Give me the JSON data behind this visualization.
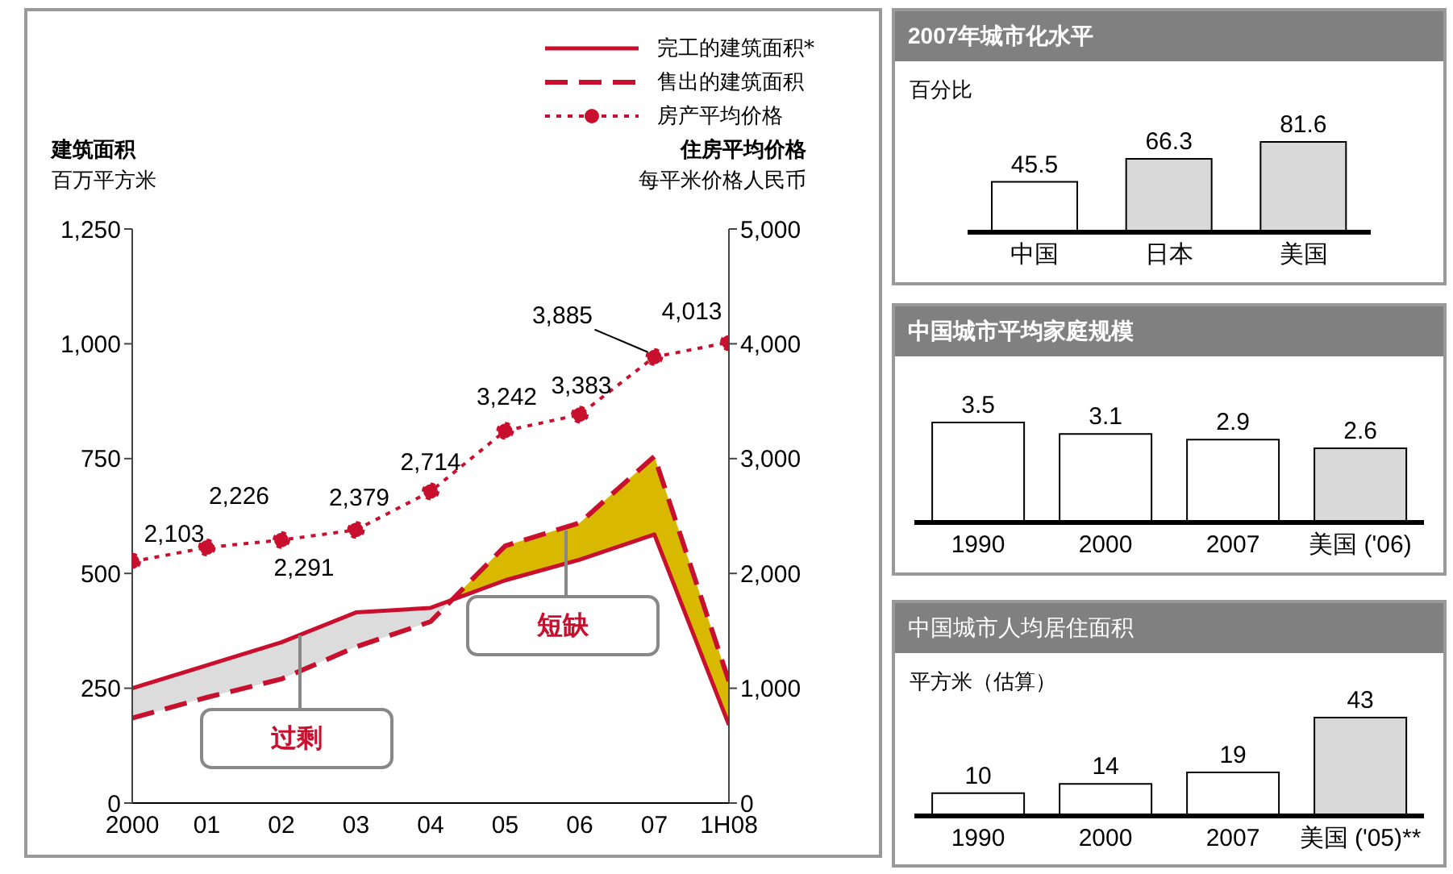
{
  "chart_data": [
    {
      "type": "line",
      "categories": [
        "2000",
        "01",
        "02",
        "03",
        "04",
        "05",
        "06",
        "07",
        "1H08"
      ],
      "ylabel": "建筑面积",
      "y2label": "住房平均价格",
      "ylim": [
        0,
        1250
      ],
      "yticks": [
        {
          "value": 0,
          "label": "0"
        },
        {
          "value": 250,
          "label": "250"
        },
        {
          "value": 500,
          "label": "500"
        },
        {
          "value": 750,
          "label": "750"
        },
        {
          "value": 1000,
          "label": "1,000"
        },
        {
          "value": 1250,
          "label": "1,250"
        }
      ],
      "y2lim": [
        0,
        5000
      ],
      "y2ticks": [
        {
          "value": 0,
          "label": "0"
        },
        {
          "value": 1000,
          "label": "1,000"
        },
        {
          "value": 2000,
          "label": "2,000"
        },
        {
          "value": 3000,
          "label": "3,000"
        },
        {
          "value": 4000,
          "label": "4,000"
        },
        {
          "value": 5000,
          "label": "5,000"
        }
      ],
      "series": [
        {
          "name": "完工的建筑面积*",
          "color": "#c8102e",
          "line_style": "solid",
          "marker": "none",
          "values": [
            250,
            300,
            350,
            415,
            425,
            485,
            530,
            585,
            170
          ]
        },
        {
          "name": "售出的建筑面积",
          "color": "#c8102e",
          "line_style": "dashed",
          "marker": "none",
          "values": [
            185,
            230,
            270,
            340,
            395,
            560,
            610,
            755,
            265
          ]
        },
        {
          "name": "房产平均价格",
          "color": "#c8102e",
          "line_style": "dotted",
          "marker": "circle",
          "axis": "y2",
          "values": [
            2103,
            2226,
            2291,
            2379,
            2714,
            3242,
            3383,
            3885,
            4013
          ],
          "value_labels": [
            "2,103",
            "2,226",
            "2,291",
            "2,379",
            "2,714",
            "3,242",
            "3,383",
            "3,885",
            "4,013"
          ]
        }
      ],
      "annotations": [
        "过剩",
        "短缺",
        "百万平方米",
        "每平米价格人民币"
      ],
      "legend": "top right"
    },
    {
      "type": "bar",
      "title": "2007年城市化水平",
      "subtitle": "百分比",
      "categories": [
        "中国",
        "日本",
        "美国"
      ],
      "values": [
        45.5,
        66.3,
        81.6
      ],
      "colors": [
        "#ffffff",
        "#d9d9d9",
        "#d9d9d9"
      ],
      "data_labels": true
    },
    {
      "type": "bar",
      "title": "中国城市平均家庭规模",
      "categories": [
        "1990",
        "2000",
        "2007",
        "美国 ('06)"
      ],
      "values": [
        3.5,
        3.1,
        2.9,
        2.6
      ],
      "colors": [
        "#ffffff",
        "#ffffff",
        "#ffffff",
        "#d9d9d9"
      ],
      "data_labels": true
    },
    {
      "type": "bar",
      "title": "中国城市人均居住面积",
      "subtitle": "平方米（估算）",
      "categories": [
        "1990",
        "2000",
        "2007",
        "美国 ('05)**"
      ],
      "values": [
        10,
        14,
        19,
        43
      ],
      "colors": [
        "#ffffff",
        "#ffffff",
        "#ffffff",
        "#d9d9d9"
      ],
      "data_labels": true
    }
  ]
}
